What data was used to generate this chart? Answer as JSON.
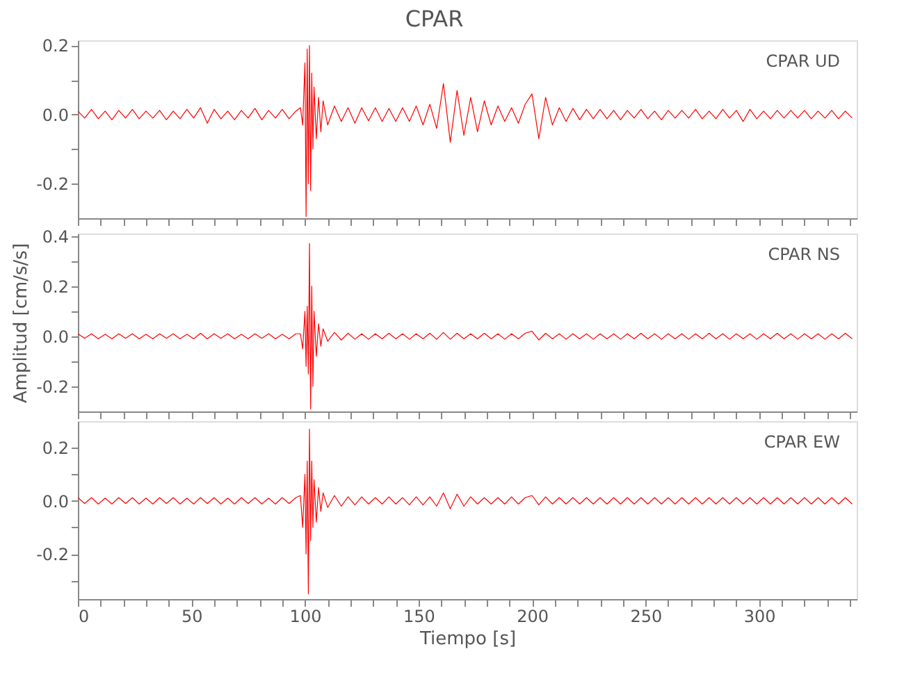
{
  "chart_data": [
    {
      "type": "line",
      "title": "CPAR",
      "annotations": [
        "CPAR   UD"
      ],
      "tick_labels": "y",
      "grid": false,
      "xlim": [
        0,
        343
      ],
      "ylim": [
        -0.3,
        0.215
      ],
      "xticks": [
        0,
        {
          "value": 10,
          "label": null
        },
        {
          "value": 20,
          "label": null
        },
        {
          "value": 30,
          "label": null
        },
        {
          "value": 40,
          "label": null
        },
        50,
        {
          "value": 60,
          "label": null
        },
        {
          "value": 70,
          "label": null
        },
        {
          "value": 80,
          "label": null
        },
        {
          "value": 90,
          "label": null
        },
        100,
        {
          "value": 110,
          "label": null
        },
        {
          "value": 120,
          "label": null
        },
        {
          "value": 130,
          "label": null
        },
        {
          "value": 140,
          "label": null
        },
        150,
        {
          "value": 160,
          "label": null
        },
        {
          "value": 170,
          "label": null
        },
        {
          "value": 180,
          "label": null
        },
        {
          "value": 190,
          "label": null
        },
        200,
        {
          "value": 210,
          "label": null
        },
        {
          "value": 220,
          "label": null
        },
        {
          "value": 230,
          "label": null
        },
        {
          "value": 240,
          "label": null
        },
        250,
        {
          "value": 260,
          "label": null
        },
        {
          "value": 270,
          "label": null
        },
        {
          "value": 280,
          "label": null
        },
        {
          "value": 290,
          "label": null
        },
        300,
        {
          "value": 310,
          "label": null
        },
        {
          "value": 320,
          "label": null
        },
        {
          "value": 330,
          "label": null
        },
        {
          "value": 340,
          "label": null
        }
      ],
      "yticks": [
        -0.2,
        {
          "value": -0.1,
          "label": null
        },
        {
          "value": 0,
          "label": "0.0"
        },
        {
          "value": 0.1,
          "label": null
        },
        0.2
      ],
      "x": [
        0,
        3,
        6,
        9,
        12,
        15,
        18,
        21,
        24,
        27,
        30,
        33,
        36,
        39,
        42,
        45,
        48,
        51,
        54,
        57,
        60,
        63,
        66,
        69,
        72,
        75,
        78,
        81,
        84,
        87,
        90,
        93,
        96,
        98,
        99,
        100,
        100.5,
        101,
        101.5,
        102,
        102.5,
        103,
        103.5,
        104,
        105,
        106,
        107,
        108,
        110,
        113,
        116,
        119,
        122,
        125,
        128,
        131,
        134,
        137,
        140,
        143,
        146,
        149,
        152,
        155,
        158,
        161,
        164,
        167,
        170,
        173,
        176,
        179,
        182,
        185,
        188,
        191,
        194,
        197,
        200,
        203,
        206,
        209,
        212,
        215,
        218,
        221,
        224,
        227,
        230,
        233,
        236,
        239,
        242,
        245,
        248,
        251,
        254,
        257,
        260,
        263,
        266,
        269,
        272,
        275,
        278,
        281,
        284,
        287,
        290,
        293,
        296,
        299,
        302,
        305,
        308,
        311,
        314,
        317,
        320,
        323,
        326,
        329,
        332,
        335,
        338,
        341
      ],
      "series": [
        {
          "color": "#ff0000",
          "values": [
            0.01,
            -0.01,
            0.015,
            -0.012,
            0.01,
            -0.015,
            0.012,
            -0.01,
            0.015,
            -0.012,
            0.01,
            -0.01,
            0.012,
            -0.015,
            0.01,
            -0.012,
            0.015,
            -0.01,
            0.02,
            -0.025,
            0.015,
            -0.012,
            0.01,
            -0.015,
            0.012,
            -0.01,
            0.018,
            -0.015,
            0.012,
            -0.01,
            0.015,
            -0.012,
            0.01,
            0.02,
            -0.03,
            0.15,
            -0.295,
            0.19,
            -0.2,
            0.2,
            -0.22,
            0.12,
            -0.1,
            0.08,
            -0.07,
            0.05,
            -0.05,
            0.04,
            -0.03,
            0.025,
            -0.02,
            0.02,
            -0.025,
            0.02,
            -0.018,
            0.02,
            -0.02,
            0.018,
            -0.02,
            0.02,
            -0.02,
            0.025,
            -0.03,
            0.03,
            -0.04,
            0.09,
            -0.08,
            0.07,
            -0.06,
            0.05,
            -0.05,
            0.04,
            -0.03,
            0.025,
            -0.02,
            0.02,
            -0.025,
            0.03,
            0.06,
            -0.07,
            0.05,
            -0.03,
            0.02,
            -0.02,
            0.018,
            -0.015,
            0.015,
            -0.012,
            0.015,
            -0.012,
            0.012,
            -0.015,
            0.012,
            -0.01,
            0.015,
            -0.012,
            0.01,
            -0.015,
            0.012,
            -0.01,
            0.012,
            -0.01,
            0.015,
            -0.012,
            0.01,
            -0.012,
            0.015,
            -0.01,
            0.012,
            -0.02,
            0.015,
            -0.012,
            0.01,
            -0.012,
            0.012,
            -0.01,
            0.012,
            -0.01,
            0.012,
            -0.012,
            0.01,
            -0.01,
            0.012,
            -0.012,
            0.01,
            -0.01
          ]
        }
      ]
    },
    {
      "type": "line",
      "ylabel": "Amplitud [cm/s/s]",
      "annotations": [
        "CPAR   NS"
      ],
      "tick_labels": "y",
      "grid": false,
      "xlim": [
        0,
        343
      ],
      "ylim": [
        -0.3,
        0.41
      ],
      "xticks": [
        0,
        {
          "value": 10,
          "label": null
        },
        {
          "value": 20,
          "label": null
        },
        {
          "value": 30,
          "label": null
        },
        {
          "value": 40,
          "label": null
        },
        50,
        {
          "value": 60,
          "label": null
        },
        {
          "value": 70,
          "label": null
        },
        {
          "value": 80,
          "label": null
        },
        {
          "value": 90,
          "label": null
        },
        100,
        {
          "value": 110,
          "label": null
        },
        {
          "value": 120,
          "label": null
        },
        {
          "value": 130,
          "label": null
        },
        {
          "value": 140,
          "label": null
        },
        150,
        {
          "value": 160,
          "label": null
        },
        {
          "value": 170,
          "label": null
        },
        {
          "value": 180,
          "label": null
        },
        {
          "value": 190,
          "label": null
        },
        200,
        {
          "value": 210,
          "label": null
        },
        {
          "value": 220,
          "label": null
        },
        {
          "value": 230,
          "label": null
        },
        {
          "value": 240,
          "label": null
        },
        250,
        {
          "value": 260,
          "label": null
        },
        {
          "value": 270,
          "label": null
        },
        {
          "value": 280,
          "label": null
        },
        {
          "value": 290,
          "label": null
        },
        300,
        {
          "value": 310,
          "label": null
        },
        {
          "value": 320,
          "label": null
        },
        {
          "value": 330,
          "label": null
        },
        {
          "value": 340,
          "label": null
        }
      ],
      "yticks": [
        -0.2,
        {
          "value": -0.1,
          "label": null
        },
        {
          "value": 0,
          "label": "0.0"
        },
        {
          "value": 0.1,
          "label": null
        },
        0.2,
        {
          "value": 0.3,
          "label": null
        },
        0.4
      ],
      "x": [
        0,
        3,
        6,
        9,
        12,
        15,
        18,
        21,
        24,
        27,
        30,
        33,
        36,
        39,
        42,
        45,
        48,
        51,
        54,
        57,
        60,
        63,
        66,
        69,
        72,
        75,
        78,
        81,
        84,
        87,
        90,
        93,
        96,
        98,
        99,
        100,
        100.5,
        101,
        101.5,
        102,
        102.5,
        103,
        103.5,
        104,
        105,
        106,
        107,
        108,
        110,
        113,
        116,
        119,
        122,
        125,
        128,
        131,
        134,
        137,
        140,
        143,
        146,
        149,
        152,
        155,
        158,
        161,
        164,
        167,
        170,
        173,
        176,
        179,
        182,
        185,
        188,
        191,
        194,
        197,
        200,
        203,
        206,
        209,
        212,
        215,
        218,
        221,
        224,
        227,
        230,
        233,
        236,
        239,
        242,
        245,
        248,
        251,
        254,
        257,
        260,
        263,
        266,
        269,
        272,
        275,
        278,
        281,
        284,
        287,
        290,
        293,
        296,
        299,
        302,
        305,
        308,
        311,
        314,
        317,
        320,
        323,
        326,
        329,
        332,
        335,
        338,
        341
      ],
      "series": [
        {
          "color": "#ff0000",
          "values": [
            0.01,
            -0.008,
            0.01,
            -0.01,
            0.008,
            -0.01,
            0.01,
            -0.008,
            0.01,
            -0.01,
            0.008,
            -0.01,
            0.01,
            -0.008,
            0.01,
            -0.01,
            0.008,
            -0.01,
            0.012,
            -0.01,
            0.01,
            -0.008,
            0.01,
            -0.01,
            0.008,
            -0.01,
            0.01,
            -0.008,
            0.01,
            -0.01,
            0.008,
            -0.01,
            0.01,
            0.01,
            -0.05,
            0.1,
            -0.12,
            0.12,
            -0.15,
            0.37,
            -0.29,
            0.2,
            -0.2,
            0.1,
            -0.08,
            0.05,
            -0.04,
            0.03,
            -0.02,
            0.015,
            -0.015,
            0.012,
            -0.012,
            0.01,
            -0.012,
            0.01,
            -0.01,
            0.012,
            -0.01,
            0.01,
            -0.012,
            0.01,
            -0.01,
            0.012,
            -0.012,
            0.015,
            -0.012,
            0.012,
            -0.01,
            0.01,
            -0.01,
            0.012,
            -0.01,
            0.01,
            -0.012,
            0.01,
            -0.01,
            0.012,
            0.02,
            -0.015,
            0.012,
            -0.01,
            0.01,
            -0.012,
            0.01,
            -0.01,
            0.01,
            -0.012,
            0.01,
            -0.01,
            0.01,
            -0.012,
            0.01,
            -0.01,
            0.012,
            -0.01,
            0.01,
            -0.012,
            0.01,
            -0.01,
            0.01,
            -0.012,
            0.01,
            -0.01,
            0.012,
            -0.01,
            0.01,
            -0.012,
            0.01,
            -0.01,
            0.01,
            -0.012,
            0.01,
            -0.01,
            0.012,
            -0.01,
            0.01,
            -0.012,
            0.01,
            -0.01,
            0.01,
            -0.012,
            0.01,
            -0.01,
            0.012,
            -0.01
          ]
        }
      ]
    },
    {
      "type": "line",
      "xlabel": "Tiempo [s]",
      "annotations": [
        "CPAR   EW"
      ],
      "grid": false,
      "xlim": [
        0,
        343
      ],
      "ylim": [
        -0.37,
        0.3
      ],
      "xticks": [
        0,
        {
          "value": 10,
          "label": null
        },
        {
          "value": 20,
          "label": null
        },
        {
          "value": 30,
          "label": null
        },
        {
          "value": 40,
          "label": null
        },
        50,
        {
          "value": 60,
          "label": null
        },
        {
          "value": 70,
          "label": null
        },
        {
          "value": 80,
          "label": null
        },
        {
          "value": 90,
          "label": null
        },
        100,
        {
          "value": 110,
          "label": null
        },
        {
          "value": 120,
          "label": null
        },
        {
          "value": 130,
          "label": null
        },
        {
          "value": 140,
          "label": null
        },
        150,
        {
          "value": 160,
          "label": null
        },
        {
          "value": 170,
          "label": null
        },
        {
          "value": 180,
          "label": null
        },
        {
          "value": 190,
          "label": null
        },
        200,
        {
          "value": 210,
          "label": null
        },
        {
          "value": 220,
          "label": null
        },
        {
          "value": 230,
          "label": null
        },
        {
          "value": 240,
          "label": null
        },
        250,
        {
          "value": 260,
          "label": null
        },
        {
          "value": 270,
          "label": null
        },
        {
          "value": 280,
          "label": null
        },
        {
          "value": 290,
          "label": null
        },
        300,
        {
          "value": 310,
          "label": null
        },
        {
          "value": 320,
          "label": null
        },
        {
          "value": 330,
          "label": null
        },
        {
          "value": 340,
          "label": null
        }
      ],
      "yticks": [
        {
          "value": -0.3,
          "label": null
        },
        -0.2,
        {
          "value": -0.1,
          "label": null
        },
        {
          "value": 0,
          "label": "0.0"
        },
        {
          "value": 0.1,
          "label": null
        },
        0.2
      ],
      "x": [
        0,
        3,
        6,
        9,
        12,
        15,
        18,
        21,
        24,
        27,
        30,
        33,
        36,
        39,
        42,
        45,
        48,
        51,
        54,
        57,
        60,
        63,
        66,
        69,
        72,
        75,
        78,
        81,
        84,
        87,
        90,
        93,
        96,
        98,
        99,
        100,
        100.5,
        101,
        101.5,
        102,
        102.5,
        103,
        103.5,
        104,
        105,
        106,
        107,
        108,
        110,
        113,
        116,
        119,
        122,
        125,
        128,
        131,
        134,
        137,
        140,
        143,
        146,
        149,
        152,
        155,
        158,
        161,
        164,
        167,
        170,
        173,
        176,
        179,
        182,
        185,
        188,
        191,
        194,
        197,
        200,
        203,
        206,
        209,
        212,
        215,
        218,
        221,
        224,
        227,
        230,
        233,
        236,
        239,
        242,
        245,
        248,
        251,
        254,
        257,
        260,
        263,
        266,
        269,
        272,
        275,
        278,
        281,
        284,
        287,
        290,
        293,
        296,
        299,
        302,
        305,
        308,
        311,
        314,
        317,
        320,
        323,
        326,
        329,
        332,
        335,
        338,
        341
      ],
      "series": [
        {
          "color": "#ff0000",
          "values": [
            0.012,
            -0.01,
            0.012,
            -0.012,
            0.01,
            -0.012,
            0.012,
            -0.01,
            0.012,
            -0.012,
            0.01,
            -0.012,
            0.012,
            -0.01,
            0.012,
            -0.012,
            0.01,
            -0.012,
            0.012,
            -0.01,
            0.012,
            -0.012,
            0.01,
            -0.012,
            0.012,
            -0.01,
            0.012,
            -0.012,
            0.01,
            -0.012,
            0.012,
            -0.01,
            0.012,
            0.02,
            -0.1,
            0.1,
            -0.2,
            0.15,
            -0.35,
            0.27,
            -0.15,
            0.15,
            -0.1,
            0.08,
            -0.08,
            0.05,
            -0.04,
            0.03,
            -0.025,
            0.02,
            -0.02,
            0.015,
            -0.015,
            0.015,
            -0.012,
            0.012,
            -0.012,
            0.015,
            -0.012,
            0.012,
            -0.015,
            0.015,
            -0.015,
            0.015,
            -0.02,
            0.03,
            -0.03,
            0.025,
            -0.02,
            0.015,
            -0.012,
            0.012,
            -0.012,
            0.012,
            -0.012,
            0.015,
            -0.012,
            0.012,
            0.02,
            -0.015,
            0.015,
            -0.012,
            0.012,
            -0.012,
            0.012,
            -0.012,
            0.012,
            -0.012,
            0.012,
            -0.012,
            0.012,
            -0.012,
            0.012,
            -0.012,
            0.012,
            -0.012,
            0.012,
            -0.012,
            0.012,
            -0.012,
            0.012,
            -0.012,
            0.012,
            -0.012,
            0.012,
            -0.012,
            0.012,
            -0.012,
            0.012,
            -0.012,
            0.012,
            -0.012,
            0.012,
            -0.012,
            0.012,
            -0.012,
            0.012,
            -0.012,
            0.012,
            -0.012,
            0.012,
            -0.012,
            0.012,
            -0.012,
            0.012,
            -0.012
          ]
        }
      ]
    }
  ]
}
